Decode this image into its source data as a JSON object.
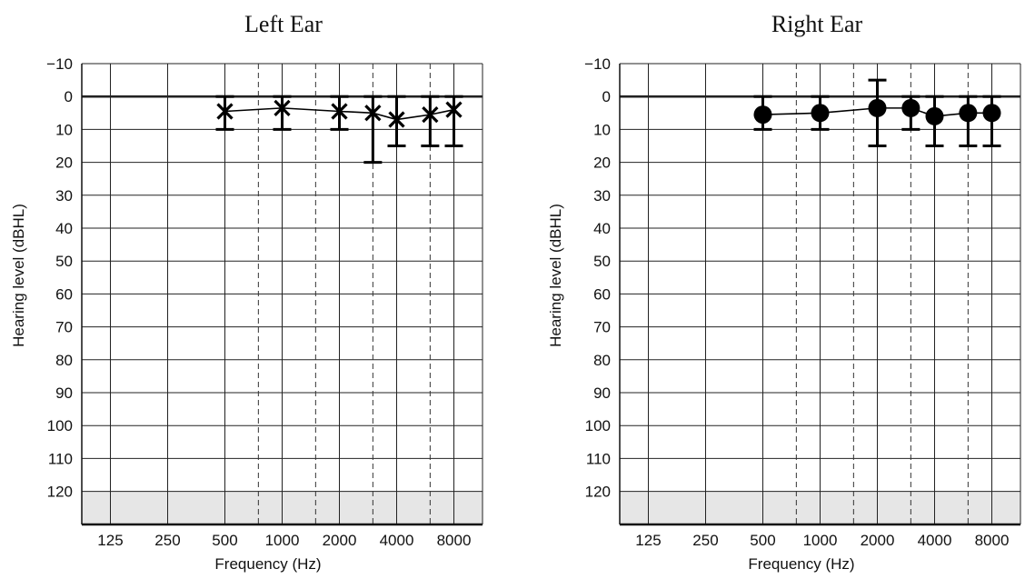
{
  "chart_data": [
    {
      "type": "scatter",
      "title": "Left Ear",
      "xlabel": "Frequency (Hz)",
      "ylabel": "Hearing level (dBHL)",
      "x_tick_labels": [
        "125",
        "250",
        "500",
        "1000",
        "2000",
        "4000",
        "8000"
      ],
      "y_tick_labels": [
        "−10",
        "0",
        "10",
        "20",
        "30",
        "40",
        "50",
        "60",
        "70",
        "80",
        "90",
        "100",
        "110",
        "120"
      ],
      "ylim": [
        -10,
        130
      ],
      "y_inverted": true,
      "shaded_region_db": [
        120,
        130
      ],
      "marker": "x",
      "series": [
        {
          "x": [
            500,
            1000,
            2000,
            3000,
            4000,
            6000,
            8000
          ],
          "y": [
            4.5,
            3.5,
            4.5,
            5,
            7,
            5.5,
            4
          ],
          "err_low": [
            0,
            0,
            0,
            0,
            0,
            0,
            0
          ],
          "err_high": [
            10,
            10,
            10,
            20,
            15,
            15,
            15
          ]
        }
      ]
    },
    {
      "type": "scatter",
      "title": "Right Ear",
      "xlabel": "Frequency (Hz)",
      "ylabel": "Hearing level (dBHL)",
      "x_tick_labels": [
        "125",
        "250",
        "500",
        "1000",
        "2000",
        "4000",
        "8000"
      ],
      "y_tick_labels": [
        "−10",
        "0",
        "10",
        "20",
        "30",
        "40",
        "50",
        "60",
        "70",
        "80",
        "90",
        "100",
        "110",
        "120"
      ],
      "ylim": [
        -10,
        130
      ],
      "y_inverted": true,
      "shaded_region_db": [
        120,
        130
      ],
      "marker": "circle",
      "series": [
        {
          "x": [
            500,
            1000,
            2000,
            3000,
            4000,
            6000,
            8000
          ],
          "y": [
            5.5,
            5,
            3.5,
            3.5,
            6,
            5,
            5
          ],
          "err_low": [
            0,
            0,
            -5,
            0,
            0,
            0,
            0
          ],
          "err_high": [
            10,
            10,
            15,
            10,
            15,
            15,
            15
          ]
        }
      ]
    }
  ]
}
